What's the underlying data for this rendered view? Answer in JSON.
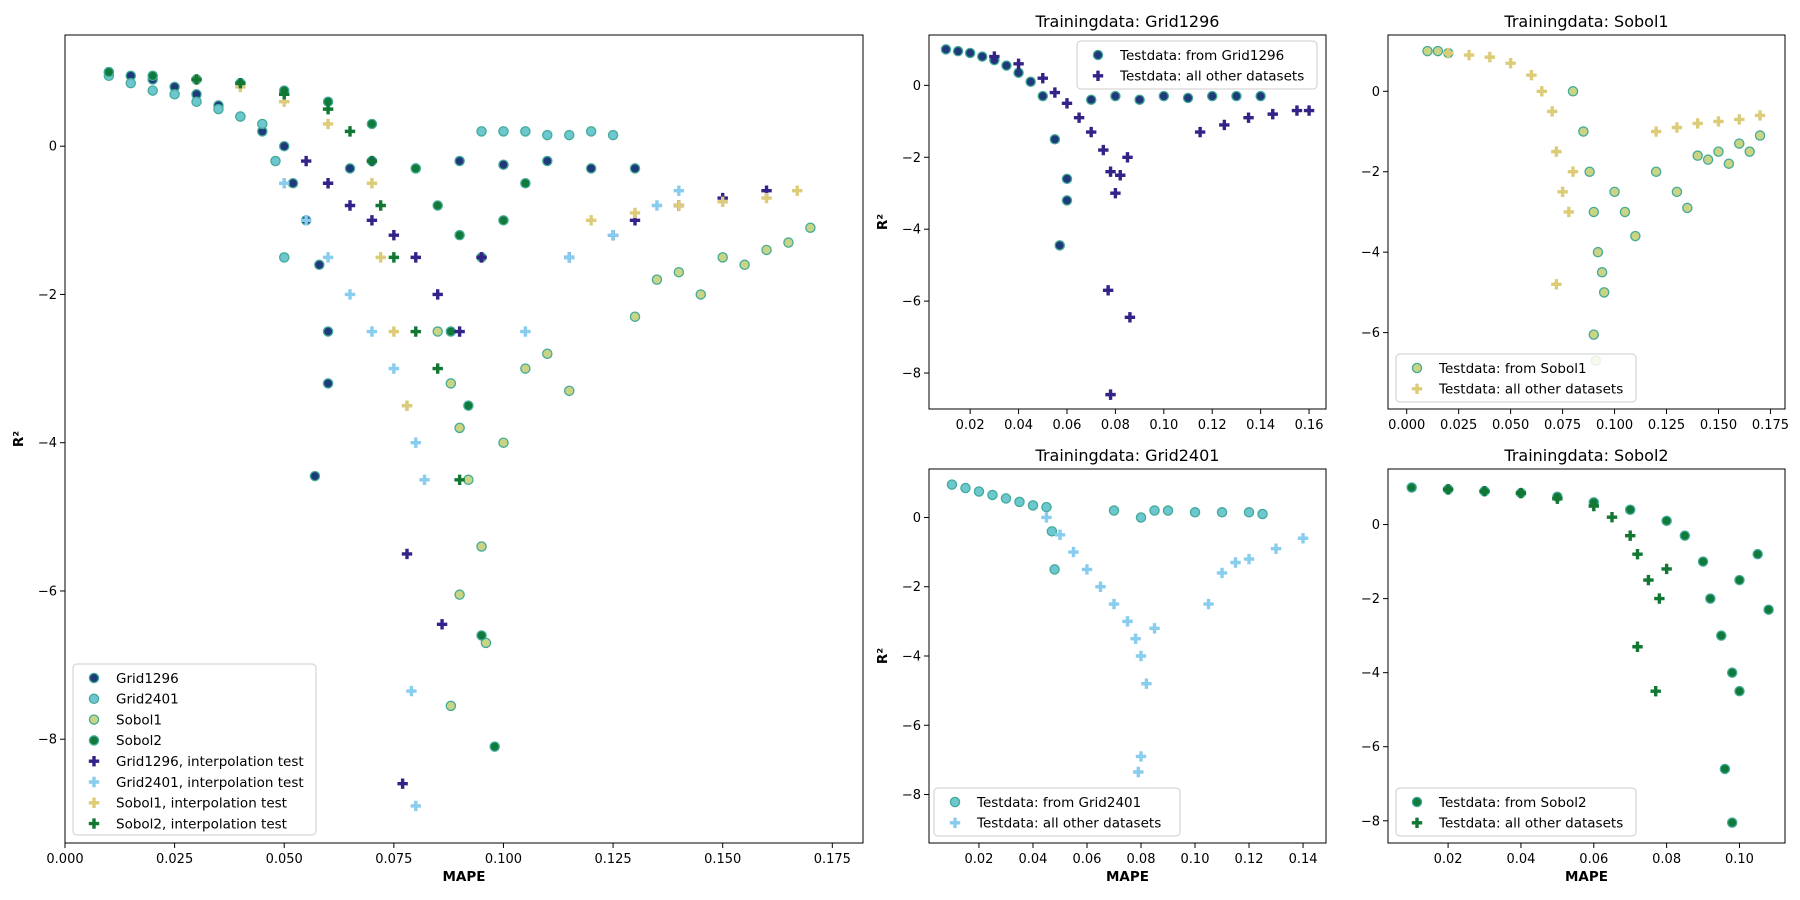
{
  "figure": {
    "colors": {
      "Grid1296": "#1f3a7a",
      "Grid2401": "#6cc7cf",
      "Sobol1": "#c9d584",
      "Sobol2": "#0f7a3a",
      "Grid1296_interp": "#332288",
      "Grid2401_interp": "#88ccee",
      "Sobol1_interp": "#ddcc77",
      "Sobol2_interp": "#117733",
      "edge": "#44aa99"
    }
  },
  "chart_data": [
    {
      "type": "scatter",
      "id": "main",
      "title": "",
      "xlabel": "MAPE",
      "ylabel": "R²",
      "xlim": [
        0.0,
        0.182
      ],
      "ylim": [
        -9.4,
        1.5
      ],
      "xticks": [
        "0.000",
        "0.025",
        "0.050",
        "0.075",
        "0.100",
        "0.125",
        "0.150",
        "0.175"
      ],
      "yticks": [
        "0",
        "−2",
        "−4",
        "−6",
        "−8"
      ],
      "legend_position": "lower-left",
      "legend": [
        "Grid1296",
        "Grid2401",
        "Sobol1",
        "Sobol2",
        "Grid1296, interpolation test",
        "Grid2401, interpolation test",
        "Sobol1, interpolation test",
        "Sobol2, interpolation test"
      ],
      "series": [
        {
          "name": "Grid1296",
          "marker": "circle",
          "color": "#1f3a7a",
          "x": [
            0.01,
            0.015,
            0.02,
            0.025,
            0.03,
            0.035,
            0.04,
            0.045,
            0.05,
            0.052,
            0.055,
            0.058,
            0.06,
            0.057,
            0.06,
            0.065,
            0.07,
            0.08,
            0.09,
            0.1,
            0.11,
            0.12,
            0.13
          ],
          "y": [
            1.0,
            0.95,
            0.9,
            0.8,
            0.7,
            0.55,
            0.4,
            0.2,
            0.0,
            -0.5,
            -1.0,
            -1.6,
            -2.5,
            -4.45,
            -3.2,
            -0.3,
            -0.2,
            -0.3,
            -0.2,
            -0.25,
            -0.2,
            -0.3,
            -0.3
          ]
        },
        {
          "name": "Grid2401",
          "marker": "circle",
          "color": "#6cc7cf",
          "x": [
            0.01,
            0.015,
            0.02,
            0.025,
            0.03,
            0.035,
            0.04,
            0.045,
            0.048,
            0.05,
            0.095,
            0.1,
            0.105,
            0.11,
            0.115,
            0.12,
            0.125
          ],
          "y": [
            0.95,
            0.85,
            0.75,
            0.7,
            0.6,
            0.5,
            0.4,
            0.3,
            -0.2,
            -1.5,
            0.2,
            0.2,
            0.2,
            0.15,
            0.15,
            0.2,
            0.15
          ]
        },
        {
          "name": "Sobol1",
          "marker": "circle",
          "color": "#c9d584",
          "x": [
            0.085,
            0.088,
            0.09,
            0.092,
            0.095,
            0.09,
            0.088,
            0.096,
            0.1,
            0.105,
            0.11,
            0.115,
            0.13,
            0.135,
            0.14,
            0.145,
            0.15,
            0.155,
            0.16,
            0.165,
            0.17
          ],
          "y": [
            -2.5,
            -3.2,
            -3.8,
            -4.5,
            -5.4,
            -6.05,
            -7.55,
            -6.7,
            -4.0,
            -3.0,
            -2.8,
            -3.3,
            -2.3,
            -1.8,
            -1.7,
            -2.0,
            -1.5,
            -1.6,
            -1.4,
            -1.3,
            -1.1
          ]
        },
        {
          "name": "Sobol2",
          "marker": "circle",
          "color": "#0f7a3a",
          "x": [
            0.01,
            0.02,
            0.03,
            0.04,
            0.05,
            0.06,
            0.07,
            0.08,
            0.085,
            0.09,
            0.095,
            0.1,
            0.105,
            0.088,
            0.092,
            0.095,
            0.098
          ],
          "y": [
            1.0,
            0.95,
            0.9,
            0.85,
            0.75,
            0.6,
            0.3,
            -0.3,
            -0.8,
            -1.2,
            -1.5,
            -1.0,
            -0.5,
            -2.5,
            -3.5,
            -6.6,
            -8.1
          ]
        },
        {
          "name": "Grid1296, interpolation test",
          "marker": "plus",
          "color": "#332288",
          "x": [
            0.055,
            0.06,
            0.065,
            0.07,
            0.075,
            0.08,
            0.085,
            0.09,
            0.095,
            0.078,
            0.077,
            0.086,
            0.115,
            0.125,
            0.13,
            0.14,
            0.15,
            0.16
          ],
          "y": [
            -0.2,
            -0.5,
            -0.8,
            -1.0,
            -1.2,
            -1.5,
            -2.0,
            -2.5,
            -1.5,
            -5.5,
            -8.6,
            -6.45,
            -1.5,
            -1.2,
            -1.0,
            -0.8,
            -0.7,
            -0.6
          ]
        },
        {
          "name": "Grid2401, interpolation test",
          "marker": "plus",
          "color": "#88ccee",
          "x": [
            0.05,
            0.055,
            0.06,
            0.065,
            0.07,
            0.075,
            0.078,
            0.08,
            0.082,
            0.079,
            0.08,
            0.105,
            0.115,
            0.125,
            0.135,
            0.14
          ],
          "y": [
            -0.5,
            -1.0,
            -1.5,
            -2.0,
            -2.5,
            -3.0,
            -3.5,
            -4.0,
            -4.5,
            -7.35,
            -8.9,
            -2.5,
            -1.5,
            -1.2,
            -0.8,
            -0.6
          ]
        },
        {
          "name": "Sobol1, interpolation test",
          "marker": "plus",
          "color": "#ddcc77",
          "x": [
            0.03,
            0.04,
            0.05,
            0.06,
            0.07,
            0.072,
            0.075,
            0.078,
            0.12,
            0.13,
            0.14,
            0.15,
            0.16,
            0.167
          ],
          "y": [
            0.9,
            0.8,
            0.6,
            0.3,
            -0.5,
            -1.5,
            -2.5,
            -3.5,
            -1.0,
            -0.9,
            -0.8,
            -0.75,
            -0.7,
            -0.6
          ]
        },
        {
          "name": "Sobol2, interpolation test",
          "marker": "plus",
          "color": "#117733",
          "x": [
            0.03,
            0.04,
            0.05,
            0.06,
            0.065,
            0.07,
            0.072,
            0.075,
            0.08,
            0.085,
            0.09
          ],
          "y": [
            0.9,
            0.85,
            0.7,
            0.5,
            0.2,
            -0.2,
            -0.8,
            -1.5,
            -2.5,
            -3.0,
            -4.5
          ]
        }
      ]
    },
    {
      "type": "scatter",
      "id": "grid1296",
      "title": "Trainingdata: Grid1296",
      "xlabel": "",
      "ylabel": "R²",
      "xlim": [
        0.003,
        0.167
      ],
      "ylim": [
        -9.0,
        1.4
      ],
      "xticks": [
        "0.02",
        "0.04",
        "0.06",
        "0.08",
        "0.10",
        "0.12",
        "0.14",
        "0.16"
      ],
      "yticks": [
        "0",
        "−2",
        "−4",
        "−6",
        "−8"
      ],
      "legend_position": "upper-right",
      "legend": [
        "Testdata: from Grid1296",
        "Testdata: all other datasets"
      ],
      "series": [
        {
          "name": "Testdata: from Grid1296",
          "marker": "circle",
          "color": "#1f3a7a",
          "x": [
            0.01,
            0.015,
            0.02,
            0.025,
            0.03,
            0.035,
            0.04,
            0.045,
            0.05,
            0.055,
            0.06,
            0.057,
            0.06,
            0.07,
            0.08,
            0.09,
            0.1,
            0.11,
            0.12,
            0.13,
            0.14
          ],
          "y": [
            1.0,
            0.95,
            0.9,
            0.8,
            0.7,
            0.55,
            0.35,
            0.1,
            -0.3,
            -1.5,
            -2.6,
            -4.45,
            -3.2,
            -0.4,
            -0.3,
            -0.4,
            -0.3,
            -0.35,
            -0.3,
            -0.3,
            -0.3
          ]
        },
        {
          "name": "Testdata: all other datasets",
          "marker": "plus",
          "color": "#332288",
          "x": [
            0.03,
            0.04,
            0.05,
            0.055,
            0.06,
            0.065,
            0.07,
            0.075,
            0.078,
            0.08,
            0.082,
            0.085,
            0.077,
            0.078,
            0.086,
            0.115,
            0.125,
            0.135,
            0.145,
            0.155,
            0.16
          ],
          "y": [
            0.8,
            0.6,
            0.2,
            -0.2,
            -0.5,
            -0.9,
            -1.3,
            -1.8,
            -2.4,
            -3.0,
            -2.5,
            -2.0,
            -5.7,
            -8.6,
            -6.45,
            -1.3,
            -1.1,
            -0.9,
            -0.8,
            -0.7,
            -0.7
          ]
        }
      ]
    },
    {
      "type": "scatter",
      "id": "sobol1",
      "title": "Trainingdata: Sobol1",
      "xlabel": "",
      "ylabel": "",
      "xlim": [
        -0.009,
        0.182
      ],
      "ylim": [
        -7.9,
        1.4
      ],
      "xticks": [
        "0.000",
        "0.025",
        "0.050",
        "0.075",
        "0.100",
        "0.125",
        "0.150",
        "0.175"
      ],
      "yticks": [
        "0",
        "−2",
        "−4",
        "−6"
      ],
      "legend_position": "lower-left",
      "legend": [
        "Testdata: from Sobol1",
        "Testdata: all other datasets"
      ],
      "series": [
        {
          "name": "Testdata: from Sobol1",
          "marker": "circle",
          "color": "#c9d584",
          "x": [
            0.01,
            0.015,
            0.02,
            0.08,
            0.085,
            0.088,
            0.09,
            0.092,
            0.094,
            0.095,
            0.09,
            0.091,
            0.1,
            0.105,
            0.11,
            0.12,
            0.13,
            0.135,
            0.14,
            0.145,
            0.15,
            0.155,
            0.16,
            0.165,
            0.17
          ],
          "y": [
            1.0,
            1.0,
            0.95,
            0.0,
            -1.0,
            -2.0,
            -3.0,
            -4.0,
            -4.5,
            -5.0,
            -6.05,
            -6.7,
            -2.5,
            -3.0,
            -3.6,
            -2.0,
            -2.5,
            -2.9,
            -1.6,
            -1.7,
            -1.5,
            -1.8,
            -1.3,
            -1.5,
            -1.1
          ]
        },
        {
          "name": "Testdata: all other datasets",
          "marker": "plus",
          "color": "#ddcc77",
          "x": [
            0.02,
            0.03,
            0.04,
            0.05,
            0.06,
            0.065,
            0.07,
            0.072,
            0.075,
            0.078,
            0.08,
            0.072,
            0.12,
            0.13,
            0.14,
            0.15,
            0.16,
            0.17
          ],
          "y": [
            0.95,
            0.9,
            0.85,
            0.7,
            0.4,
            0.0,
            -0.5,
            -1.5,
            -2.5,
            -3.0,
            -2.0,
            -4.8,
            -1.0,
            -0.9,
            -0.8,
            -0.75,
            -0.7,
            -0.6
          ]
        }
      ]
    },
    {
      "type": "scatter",
      "id": "grid2401",
      "title": "Trainingdata: Grid2401",
      "xlabel": "MAPE",
      "ylabel": "R²",
      "xlim": [
        0.0015,
        0.1485
      ],
      "ylim": [
        -9.4,
        1.4
      ],
      "xticks": [
        "0.02",
        "0.04",
        "0.06",
        "0.08",
        "0.10",
        "0.12",
        "0.14"
      ],
      "yticks": [
        "0",
        "−2",
        "−4",
        "−6",
        "−8"
      ],
      "legend_position": "lower-left",
      "legend": [
        "Testdata: from Grid2401",
        "Testdata: all other datasets"
      ],
      "series": [
        {
          "name": "Testdata: from Grid2401",
          "marker": "circle",
          "color": "#6cc7cf",
          "x": [
            0.01,
            0.015,
            0.02,
            0.025,
            0.03,
            0.035,
            0.04,
            0.045,
            0.047,
            0.048,
            0.07,
            0.08,
            0.085,
            0.09,
            0.1,
            0.11,
            0.12,
            0.125
          ],
          "y": [
            0.95,
            0.85,
            0.75,
            0.65,
            0.55,
            0.45,
            0.35,
            0.3,
            -0.4,
            -1.5,
            0.2,
            0.0,
            0.2,
            0.2,
            0.15,
            0.15,
            0.15,
            0.1
          ]
        },
        {
          "name": "Testdata: all other datasets",
          "marker": "plus",
          "color": "#88ccee",
          "x": [
            0.045,
            0.05,
            0.055,
            0.06,
            0.065,
            0.07,
            0.075,
            0.078,
            0.08,
            0.082,
            0.085,
            0.079,
            0.08,
            0.105,
            0.11,
            0.115,
            0.12,
            0.13,
            0.14
          ],
          "y": [
            0.0,
            -0.5,
            -1.0,
            -1.5,
            -2.0,
            -2.5,
            -3.0,
            -3.5,
            -4.0,
            -4.8,
            -3.2,
            -7.35,
            -6.9,
            -2.5,
            -1.6,
            -1.3,
            -1.2,
            -0.9,
            -0.6
          ]
        }
      ]
    },
    {
      "type": "scatter",
      "id": "sobol2",
      "title": "Trainingdata: Sobol2",
      "xlabel": "MAPE",
      "ylabel": "",
      "xlim": [
        0.0035,
        0.1125
      ],
      "ylim": [
        -8.6,
        1.5
      ],
      "xticks": [
        "0.02",
        "0.04",
        "0.06",
        "0.08",
        "0.10"
      ],
      "yticks": [
        "0",
        "−2",
        "−4",
        "−6",
        "−8"
      ],
      "legend_position": "lower-left",
      "legend": [
        "Testdata: from Sobol2",
        "Testdata: all other datasets"
      ],
      "series": [
        {
          "name": "Testdata: from Sobol2",
          "marker": "circle",
          "color": "#0f7a3a",
          "x": [
            0.01,
            0.02,
            0.03,
            0.04,
            0.05,
            0.06,
            0.07,
            0.08,
            0.085,
            0.09,
            0.092,
            0.095,
            0.098,
            0.1,
            0.105,
            0.108,
            0.096,
            0.098,
            0.1
          ],
          "y": [
            1.0,
            0.95,
            0.9,
            0.85,
            0.75,
            0.6,
            0.4,
            0.1,
            -0.3,
            -1.0,
            -2.0,
            -3.0,
            -4.0,
            -1.5,
            -0.8,
            -2.3,
            -6.6,
            -8.05,
            -4.5
          ]
        },
        {
          "name": "Testdata: all other datasets",
          "marker": "plus",
          "color": "#117733",
          "x": [
            0.02,
            0.03,
            0.04,
            0.05,
            0.06,
            0.065,
            0.07,
            0.072,
            0.075,
            0.078,
            0.08,
            0.072,
            0.077
          ],
          "y": [
            0.95,
            0.9,
            0.85,
            0.7,
            0.5,
            0.2,
            -0.3,
            -0.8,
            -1.5,
            -2.0,
            -1.2,
            -3.3,
            -4.5
          ]
        }
      ]
    }
  ]
}
